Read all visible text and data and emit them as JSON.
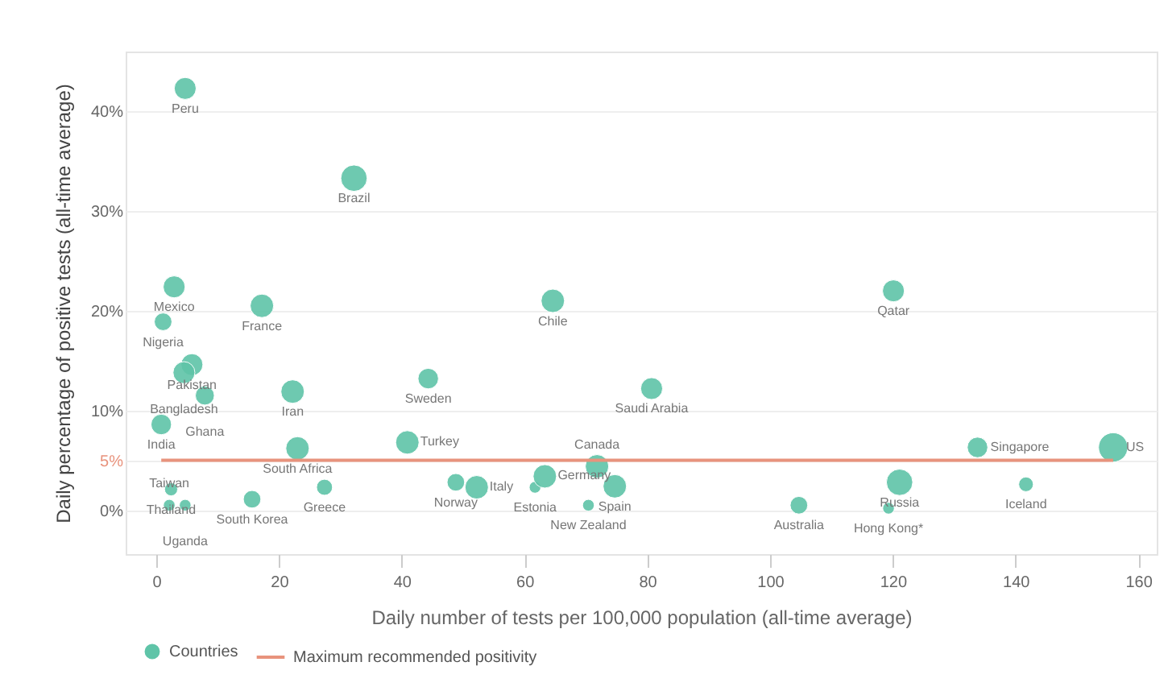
{
  "chart_data": {
    "type": "bubble",
    "xlabel": "Daily number of tests per 100,000 population (all-time average)",
    "ylabel": "Daily percentage of positive tests (all-time average)",
    "x": [
      4.7,
      32.2,
      2.9,
      1.1,
      17.2,
      64.6,
      120.1,
      5.8,
      4.5,
      7.9,
      22.2,
      44.3,
      80.7,
      0.8,
      23.0,
      40.9,
      133.8,
      155.9,
      2.4,
      2.1,
      4.7,
      15.6,
      27.4,
      48.8,
      52.2,
      61.7,
      63.3,
      71.8,
      74.7,
      70.4,
      104.7,
      121.1,
      119.3,
      141.7
    ],
    "series": [
      {
        "name": "Countries",
        "color": "#5fc4a8",
        "values": [
          42.3,
          33.3,
          22.4,
          18.9,
          20.5,
          21.0,
          22.0,
          14.6,
          13.8,
          11.5,
          11.9,
          13.2,
          12.2,
          8.6,
          6.2,
          6.8,
          6.3,
          6.3,
          2.1,
          0.5,
          0.5,
          1.1,
          2.3,
          2.8,
          2.3,
          2.3,
          3.4,
          4.4,
          2.4,
          0.5,
          0.5,
          2.8,
          0.2,
          2.6
        ],
        "sizes": [
          0.56,
          0.81,
          0.56,
          0.36,
          0.64,
          0.64,
          0.56,
          0.56,
          0.56,
          0.42,
          0.64,
          0.49,
          0.56,
          0.49,
          0.64,
          0.64,
          0.49,
          1,
          0.2,
          0.16,
          0.16,
          0.36,
          0.3,
          0.36,
          0.64,
          0.16,
          0.64,
          0.64,
          0.64,
          0.16,
          0.36,
          0.81,
          0.16,
          0.25
        ]
      }
    ],
    "annotations": [
      {
        "text": "Peru",
        "x": 4.7,
        "y": 42.3
      },
      {
        "text": "Brazil",
        "x": 32.2,
        "y": 33.3
      },
      {
        "text": "Mexico",
        "x": 2.9,
        "y": 22.4
      },
      {
        "text": "Nigeria",
        "x": 1.1,
        "y": 18.9
      },
      {
        "text": "France",
        "x": 17.2,
        "y": 20.5
      },
      {
        "text": "Chile",
        "x": 64.6,
        "y": 21.0
      },
      {
        "text": "Qatar",
        "x": 120.1,
        "y": 22.0
      },
      {
        "text": "Pakistan",
        "x": 5.8,
        "y": 14.6
      },
      {
        "text": "Bangladesh",
        "x": 4.5,
        "y": 13.8
      },
      {
        "text": "Ghana",
        "x": 7.9,
        "y": 11.5
      },
      {
        "text": "Iran",
        "x": 22.2,
        "y": 11.9
      },
      {
        "text": "Sweden",
        "x": 44.3,
        "y": 13.2
      },
      {
        "text": "Saudi Arabia",
        "x": 80.7,
        "y": 12.2
      },
      {
        "text": "India",
        "x": 0.8,
        "y": 8.6
      },
      {
        "text": "South Africa",
        "x": 23.0,
        "y": 6.2
      },
      {
        "text": "Turkey",
        "x": 40.9,
        "y": 6.8
      },
      {
        "text": "Singapore",
        "x": 133.8,
        "y": 6.3
      },
      {
        "text": "US",
        "x": 155.9,
        "y": 6.3
      },
      {
        "text": "Thailand",
        "x": 2.4,
        "y": 2.1
      },
      {
        "text": "Taiwan",
        "x": 2.1,
        "y": 0.5
      },
      {
        "text": "Uganda",
        "x": 4.7,
        "y": 0.5
      },
      {
        "text": "South Korea",
        "x": 15.6,
        "y": 1.1
      },
      {
        "text": "Greece",
        "x": 27.4,
        "y": 2.3
      },
      {
        "text": "Norway",
        "x": 48.8,
        "y": 2.8
      },
      {
        "text": "Italy",
        "x": 52.2,
        "y": 2.3
      },
      {
        "text": "Estonia",
        "x": 61.7,
        "y": 2.3
      },
      {
        "text": "Germany",
        "x": 63.3,
        "y": 3.4
      },
      {
        "text": "Canada",
        "x": 71.8,
        "y": 4.4
      },
      {
        "text": "Spain",
        "x": 74.7,
        "y": 2.4
      },
      {
        "text": "New Zealand",
        "x": 70.4,
        "y": 0.5
      },
      {
        "text": "Australia",
        "x": 104.7,
        "y": 0.5
      },
      {
        "text": "Russia",
        "x": 121.1,
        "y": 2.8
      },
      {
        "text": "Hong Kong*",
        "x": 119.3,
        "y": 0.2
      },
      {
        "text": "Iceland",
        "x": 141.7,
        "y": 2.6
      }
    ],
    "ref_lines": [
      {
        "axis": "y",
        "value": 5,
        "label": "Maximum recommended positivity",
        "color": "#e8937d"
      }
    ],
    "xlim": [
      -5,
      163
    ],
    "ylim": [
      -4.4,
      46
    ],
    "xticks": [
      0,
      20,
      40,
      60,
      80,
      100,
      120,
      140,
      160
    ],
    "yticks": [
      {
        "value": 0,
        "label": "0%"
      },
      {
        "value": 5,
        "label": "5%"
      },
      {
        "value": 10,
        "label": "10%"
      },
      {
        "value": 20,
        "label": "20%"
      },
      {
        "value": 30,
        "label": "30%"
      },
      {
        "value": 40,
        "label": "40%"
      }
    ],
    "grid": "y",
    "legend": "bottom left"
  }
}
